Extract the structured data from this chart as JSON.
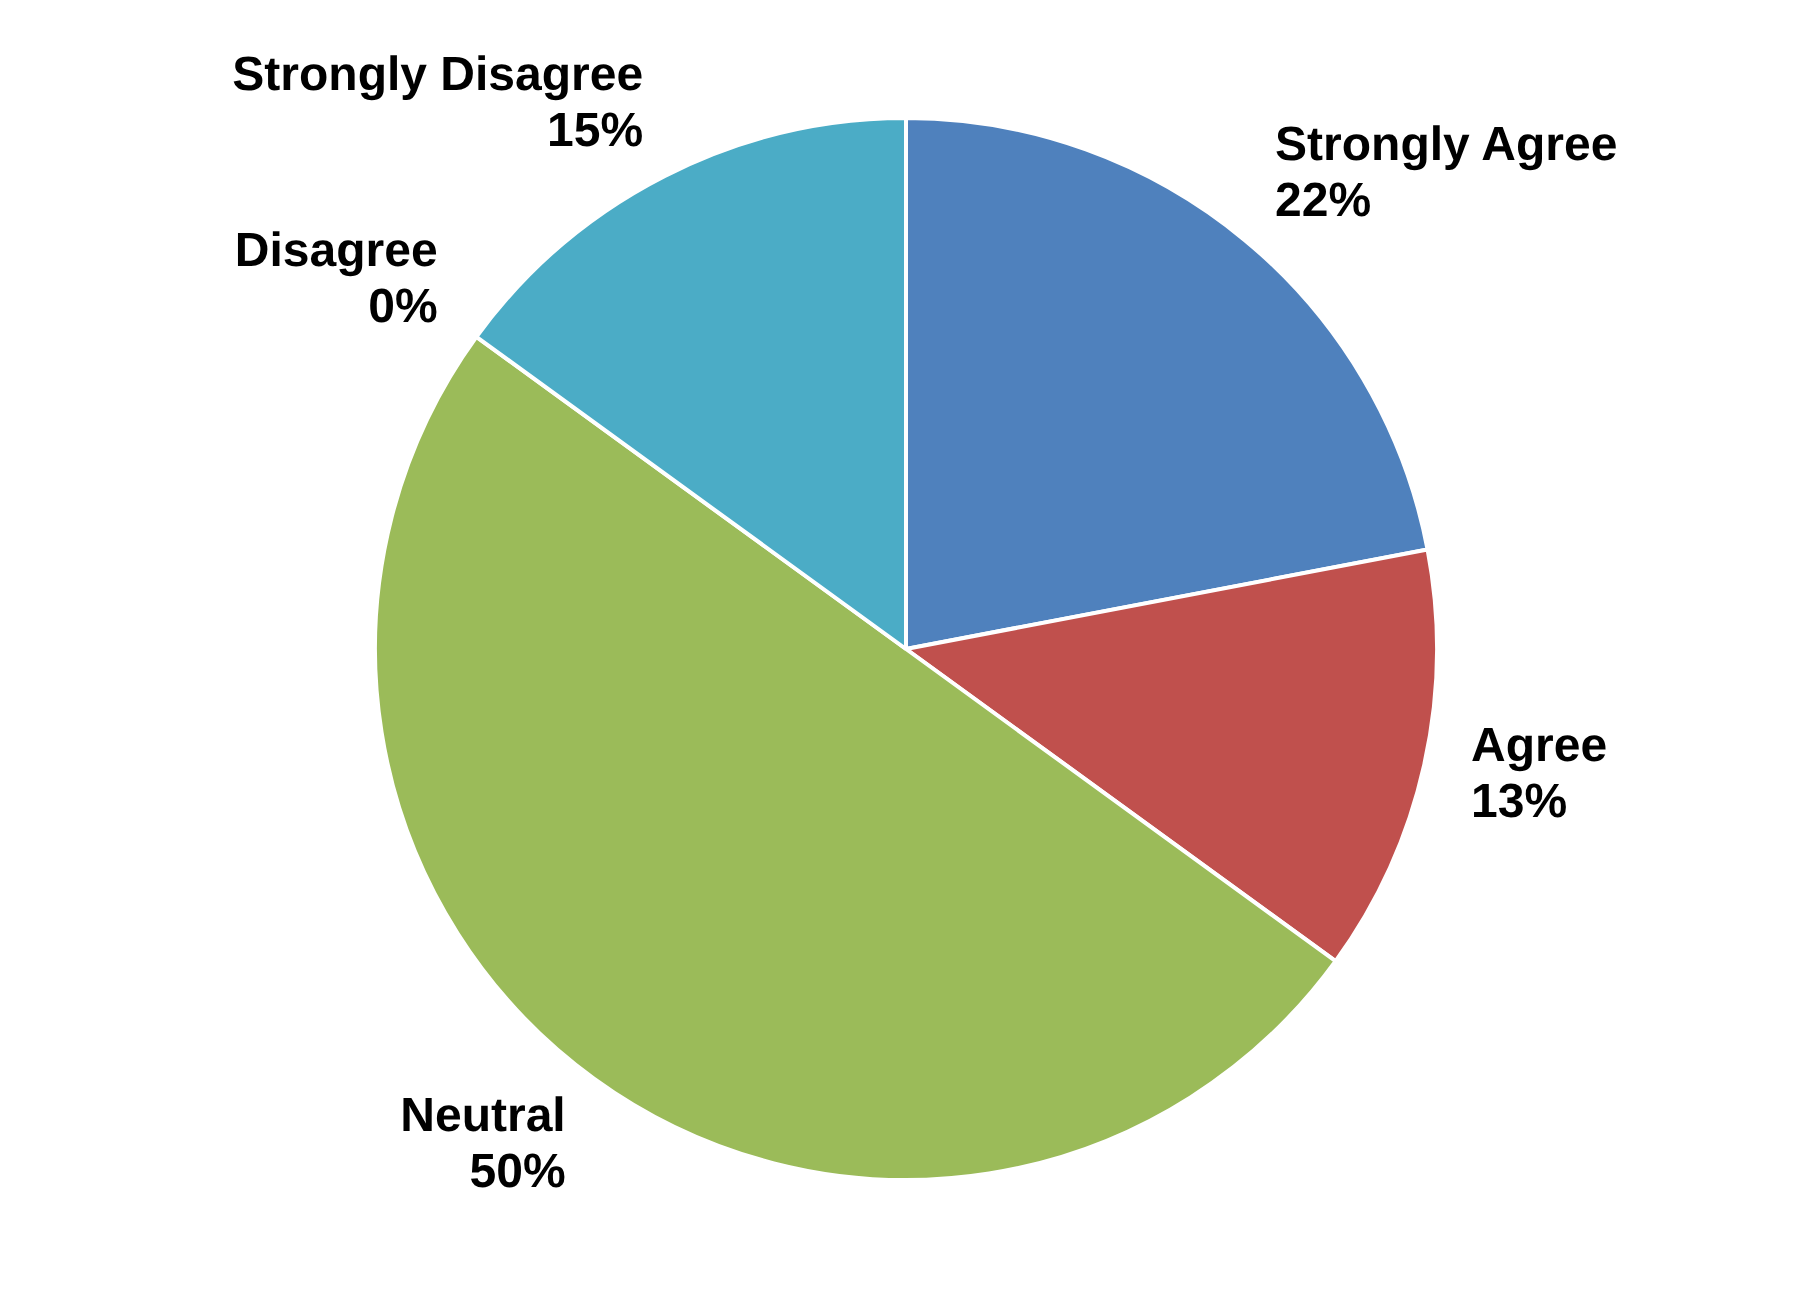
{
  "chart_data": {
    "type": "pie",
    "categories": [
      "Strongly Agree",
      "Agree",
      "Neutral",
      "Disagree",
      "Strongly Disagree"
    ],
    "values": [
      22,
      13,
      50,
      0,
      15
    ],
    "colors": [
      "#4f81bd",
      "#c0504d",
      "#9bbb59",
      "#8064a2",
      "#4bacc6"
    ],
    "value_labels": [
      "22%",
      "13%",
      "50%",
      "0%",
      "15%"
    ],
    "legend": false
  }
}
